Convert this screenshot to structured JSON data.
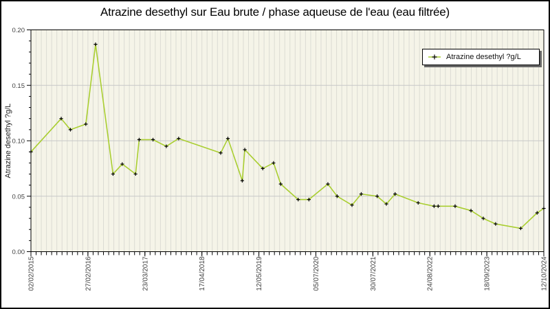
{
  "chart_data": {
    "type": "line",
    "title": "Atrazine desethyl sur Eau brute / phase aqueuse de l'eau (eau filtrée)",
    "ylabel": "Atrazine desethyl ?g/L",
    "xlabel": "",
    "ylim": [
      0.0,
      0.2
    ],
    "yticks": [
      "0.00",
      "0.05",
      "0.10",
      "0.15",
      "0.20"
    ],
    "ytick_values": [
      0.0,
      0.05,
      0.1,
      0.15,
      0.2
    ],
    "y_minor_step": 0.01,
    "xticks": [
      "02/02/2015",
      "27/02/2016",
      "23/03/2017",
      "17/04/2018",
      "12/05/2019",
      "05/07/2020",
      "30/07/2021",
      "24/08/2022",
      "18/09/2023",
      "12/10/2024"
    ],
    "grid": {
      "horizontal_major_gridlines": true,
      "vertical_minor_stripes": true,
      "minor_stripe_intervals": 99
    },
    "legend": {
      "position": "top-right",
      "label": "Atrazine desethyl ?g/L"
    },
    "series": [
      {
        "name": "Atrazine desethyl ?g/L",
        "line_color": "#a9ce30",
        "marker": "plus",
        "marker_color": "#000000",
        "points": [
          [
            0.0,
            0.09
          ],
          [
            0.059,
            0.12
          ],
          [
            0.077,
            0.11
          ],
          [
            0.107,
            0.115
          ],
          [
            0.126,
            0.187
          ],
          [
            0.16,
            0.07
          ],
          [
            0.178,
            0.079
          ],
          [
            0.204,
            0.07
          ],
          [
            0.211,
            0.101
          ],
          [
            0.238,
            0.101
          ],
          [
            0.264,
            0.095
          ],
          [
            0.288,
            0.102
          ],
          [
            0.37,
            0.089
          ],
          [
            0.384,
            0.102
          ],
          [
            0.412,
            0.064
          ],
          [
            0.417,
            0.092
          ],
          [
            0.452,
            0.075
          ],
          [
            0.473,
            0.08
          ],
          [
            0.487,
            0.061
          ],
          [
            0.521,
            0.047
          ],
          [
            0.542,
            0.047
          ],
          [
            0.579,
            0.061
          ],
          [
            0.597,
            0.05
          ],
          [
            0.626,
            0.042
          ],
          [
            0.644,
            0.052
          ],
          [
            0.675,
            0.05
          ],
          [
            0.693,
            0.043
          ],
          [
            0.71,
            0.052
          ],
          [
            0.755,
            0.044
          ],
          [
            0.786,
            0.041
          ],
          [
            0.794,
            0.041
          ],
          [
            0.827,
            0.041
          ],
          [
            0.858,
            0.037
          ],
          [
            0.882,
            0.03
          ],
          [
            0.906,
            0.025
          ],
          [
            0.955,
            0.021
          ],
          [
            0.987,
            0.035
          ],
          [
            1.0,
            0.039
          ]
        ]
      }
    ],
    "colors": {
      "plot_background": "#f5f4e8",
      "stripe": "#dbdbd3",
      "horizontal_gridline": "#c7c7c7",
      "axis": "#000000",
      "tick_label": "#404040",
      "series_line": "#a9ce30",
      "marker": "#000000",
      "legend_shadow": "#676767"
    }
  }
}
